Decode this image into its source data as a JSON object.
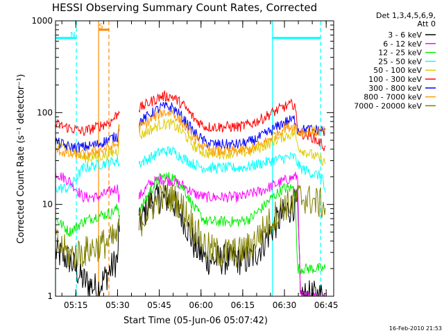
{
  "chart_data": {
    "type": "line",
    "title": "HESSI Observing Summary Count Rates, Corrected",
    "xlabel": "Start Time (05-Jun-06 05:07:42)",
    "ylabel": "Corrected Count Rate (s⁻¹ detector⁻¹)",
    "y_scale": "log",
    "ylim": [
      1,
      1000
    ],
    "x_range_minutes": [
      0,
      100
    ],
    "x_ticks": [
      {
        "label": "05:15",
        "min": 7.3
      },
      {
        "label": "05:30",
        "min": 22.3
      },
      {
        "label": "05:45",
        "min": 37.3
      },
      {
        "label": "06:00",
        "min": 52.3
      },
      {
        "label": "06:15",
        "min": 67.3
      },
      {
        "label": "06:30",
        "min": 82.3
      },
      {
        "label": "06:45",
        "min": 97.3
      }
    ],
    "y_ticks": [
      {
        "label": "1",
        "value": 1
      },
      {
        "label": "10",
        "value": 10
      },
      {
        "label": "100",
        "value": 100
      },
      {
        "label": "1000",
        "value": 1000
      }
    ],
    "legend_header": [
      "Det 1,3,4,5,6,9,",
      "Att 0"
    ],
    "legend_placement": "right",
    "x": [
      0,
      5,
      10,
      15,
      20,
      22,
      22.5,
      30,
      34,
      38,
      42,
      46,
      50,
      54,
      58,
      62,
      66,
      70,
      74,
      78,
      82,
      86,
      87,
      88,
      92,
      96,
      97
    ],
    "gaps": [
      [
        23,
        30
      ]
    ],
    "series": [
      {
        "name": "3 - 6 keV",
        "color": "#000000",
        "values": [
          3,
          2.5,
          1.5,
          1.2,
          2,
          2.5,
          null,
          6,
          11,
          12,
          11,
          7,
          3.5,
          2.5,
          2.5,
          2.5,
          2.5,
          2.5,
          3.5,
          5.5,
          8,
          10,
          10,
          1,
          1,
          1,
          1
        ]
      },
      {
        "name": "6 - 12 keV",
        "color": "#ff00ff",
        "values": [
          22,
          18,
          12,
          12,
          14,
          15,
          null,
          12,
          17,
          19,
          18,
          16,
          13,
          12,
          12,
          12,
          12,
          13,
          14,
          16,
          18,
          20,
          20,
          1,
          1,
          1,
          1
        ]
      },
      {
        "name": "12 - 25 keV",
        "color": "#00ee00",
        "values": [
          7,
          5,
          6.5,
          7.5,
          8,
          9,
          null,
          8,
          14,
          20,
          20,
          15,
          9,
          6.5,
          6.5,
          6.5,
          6.5,
          7,
          9,
          12,
          15,
          15,
          2,
          2,
          2,
          2,
          2
        ]
      },
      {
        "name": "25 - 50 keV",
        "color": "#00ffff",
        "values": [
          15,
          15,
          25,
          27,
          29,
          30,
          null,
          28,
          32,
          38,
          38,
          32,
          27,
          25,
          25,
          25,
          25,
          26,
          28,
          30,
          32,
          33,
          28,
          25,
          22,
          20,
          12
        ]
      },
      {
        "name": "50 - 100 keV",
        "color": "#ddcc00",
        "values": [
          48,
          40,
          32,
          33,
          36,
          38,
          null,
          55,
          65,
          75,
          75,
          60,
          42,
          36,
          36,
          36,
          36,
          38,
          42,
          48,
          55,
          60,
          45,
          40,
          35,
          30,
          28
        ]
      },
      {
        "name": "100 - 300 keV",
        "color": "#ff0000",
        "values": [
          75,
          68,
          62,
          70,
          80,
          95,
          null,
          110,
          130,
          150,
          150,
          120,
          85,
          70,
          70,
          70,
          70,
          75,
          85,
          100,
          115,
          125,
          65,
          60,
          55,
          45,
          40
        ]
      },
      {
        "name": "300 - 800 keV",
        "color": "#0000ff",
        "values": [
          48,
          42,
          42,
          45,
          52,
          55,
          null,
          78,
          95,
          115,
          115,
          85,
          60,
          47,
          45,
          45,
          45,
          48,
          55,
          65,
          78,
          85,
          65,
          65,
          65,
          65,
          60
        ]
      },
      {
        "name": "800 - 7000 keV",
        "color": "#ff9900",
        "values": [
          40,
          35,
          35,
          38,
          42,
          45,
          null,
          68,
          82,
          100,
          100,
          75,
          52,
          40,
          38,
          38,
          38,
          40,
          45,
          55,
          68,
          72,
          62,
          62,
          62,
          62,
          62
        ]
      },
      {
        "name": "7000 - 20000 keV",
        "color": "#808000",
        "values": [
          4,
          2.8,
          3,
          3.5,
          4,
          4.5,
          null,
          6,
          9,
          12,
          12,
          9,
          5.5,
          3.5,
          3,
          3,
          3,
          3.5,
          5,
          7,
          9.5,
          11,
          12,
          12,
          11,
          10,
          9
        ]
      }
    ],
    "annotations": [
      {
        "label": "N",
        "color": "#00ffff",
        "start_min": 0,
        "end_min": 7.5,
        "level": 650
      },
      {
        "label": "S",
        "color": "#ff8800",
        "start_min": 15.5,
        "end_min": 19.2,
        "level": 800
      },
      {
        "label": "",
        "color": "#00ffff",
        "start_min": 78,
        "end_min": 95.3,
        "level": 650
      }
    ],
    "vertical_markers": [
      {
        "min": 0,
        "color": "#00ffff",
        "style": "solid"
      },
      {
        "min": 7.5,
        "color": "#00ffff",
        "style": "dashed"
      },
      {
        "min": 15.5,
        "color": "#ff8800",
        "style": "solid"
      },
      {
        "min": 19.2,
        "color": "#ff8800",
        "style": "dashed"
      },
      {
        "min": 78,
        "color": "#00ffff",
        "style": "solid"
      },
      {
        "min": 95.3,
        "color": "#00ffff",
        "style": "dashed"
      }
    ],
    "grid": false
  },
  "footer": {
    "timestamp": "16-Feb-2010 21:53"
  }
}
